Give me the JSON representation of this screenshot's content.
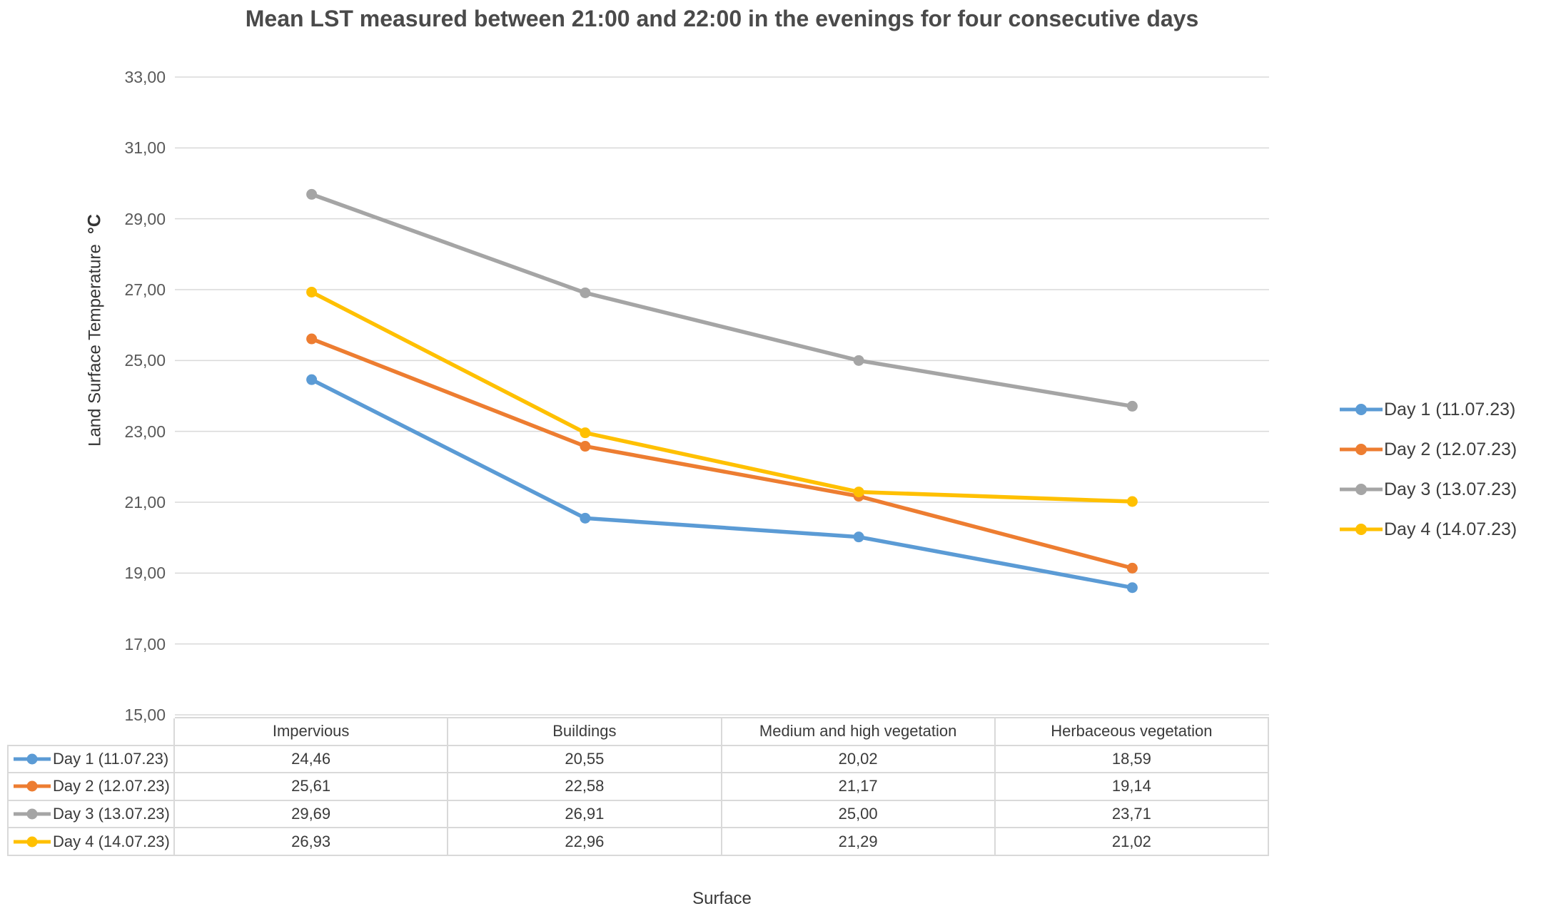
{
  "chart_data": {
    "type": "line",
    "title": "Mean LST measured between 21:00 and 22:00 in the evenings for four consecutive days",
    "xlabel": "Surface",
    "ylabel": "Land Surface Temperature",
    "ylabel_unit": "°C",
    "categories": [
      "Impervious",
      "Buildings",
      "Medium and high vegetation",
      "Herbaceous vegetation"
    ],
    "series": [
      {
        "name": "Day 1 (11.07.23)",
        "color": "#5B9BD5",
        "values": [
          24.46,
          20.55,
          20.02,
          18.59
        ],
        "display": [
          "24,46",
          "20,55",
          "20,02",
          "18,59"
        ]
      },
      {
        "name": "Day 2 (12.07.23)",
        "color": "#ED7D31",
        "values": [
          25.61,
          22.58,
          21.17,
          19.14
        ],
        "display": [
          "25,61",
          "22,58",
          "21,17",
          "19,14"
        ]
      },
      {
        "name": "Day 3 (13.07.23)",
        "color": "#A5A5A5",
        "values": [
          29.69,
          26.91,
          25.0,
          23.71
        ],
        "display": [
          "29,69",
          "26,91",
          "25,00",
          "23,71"
        ]
      },
      {
        "name": "Day 4 (14.07.23)",
        "color": "#FFC000",
        "values": [
          26.93,
          22.96,
          21.29,
          21.02
        ],
        "display": [
          "26,93",
          "22,96",
          "21,29",
          "21,02"
        ]
      }
    ],
    "y_axis": {
      "min": 15,
      "max": 33,
      "step": 2,
      "tick_labels": [
        "33,00",
        "31,00",
        "29,00",
        "27,00",
        "25,00",
        "23,00",
        "21,00",
        "19,00",
        "17,00",
        "15,00"
      ]
    },
    "grid": true,
    "legend_position": "right",
    "gridline_color": "#D9D9D9",
    "tick_text_color": "#595959"
  }
}
